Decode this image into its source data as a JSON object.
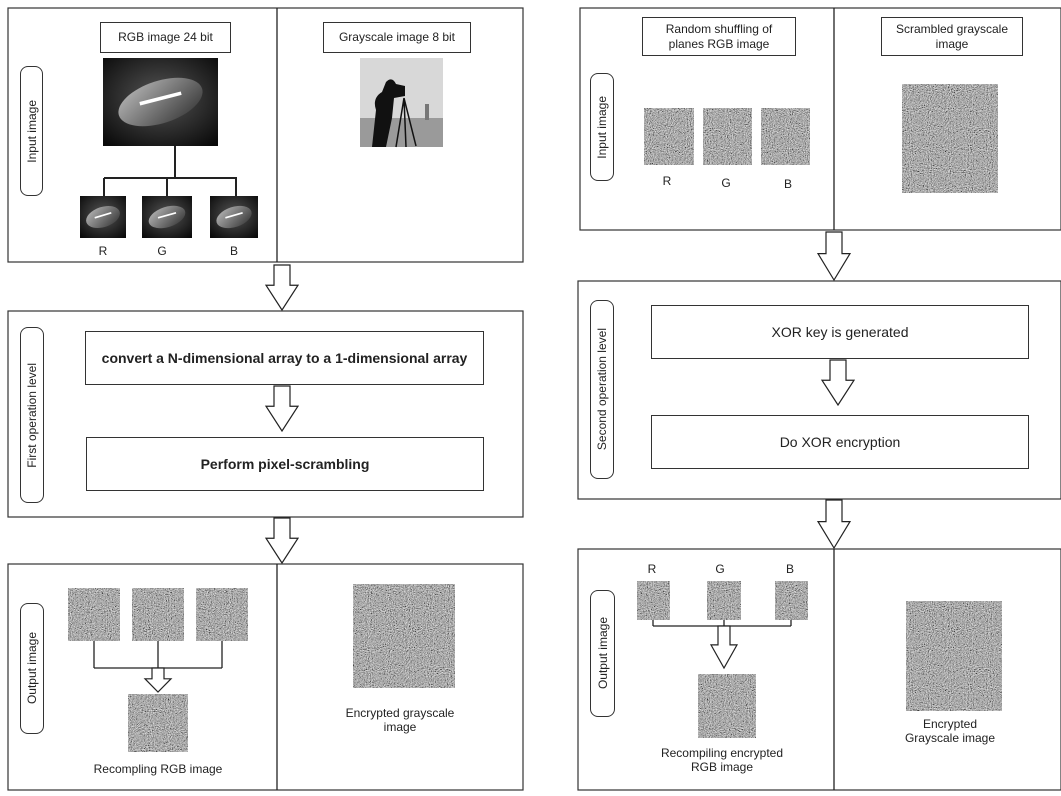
{
  "left_panel": {
    "input_stage": {
      "label": "Input image",
      "rgb_title": "RGB image 24 bit",
      "gray_title": "Grayscale image 8 bit",
      "channels": [
        "R",
        "G",
        "B"
      ]
    },
    "first_operation": {
      "label": "First operation level",
      "steps": [
        "convert a N-dimensional array to a 1-dimensional array",
        "Perform pixel-scrambling"
      ]
    },
    "output_stage": {
      "label": "Output image",
      "rgb_caption": "Recompling RGB image",
      "gray_caption": "Encrypted grayscale image"
    }
  },
  "right_panel": {
    "input_stage": {
      "label": "Input image",
      "rgb_title": "Random shuffling of planes RGB image",
      "gray_title": "Scrambled grayscale image",
      "channels": [
        "R",
        "G",
        "B"
      ]
    },
    "second_operation": {
      "label": "Second operation level",
      "steps": [
        "XOR key is generated",
        "Do XOR encryption"
      ]
    },
    "output_stage": {
      "label": "Output image",
      "channels": [
        "R",
        "G",
        "B"
      ],
      "rgb_caption": "Recompiling encrypted RGB image",
      "gray_caption": "Encrypted Grayscale image"
    }
  }
}
